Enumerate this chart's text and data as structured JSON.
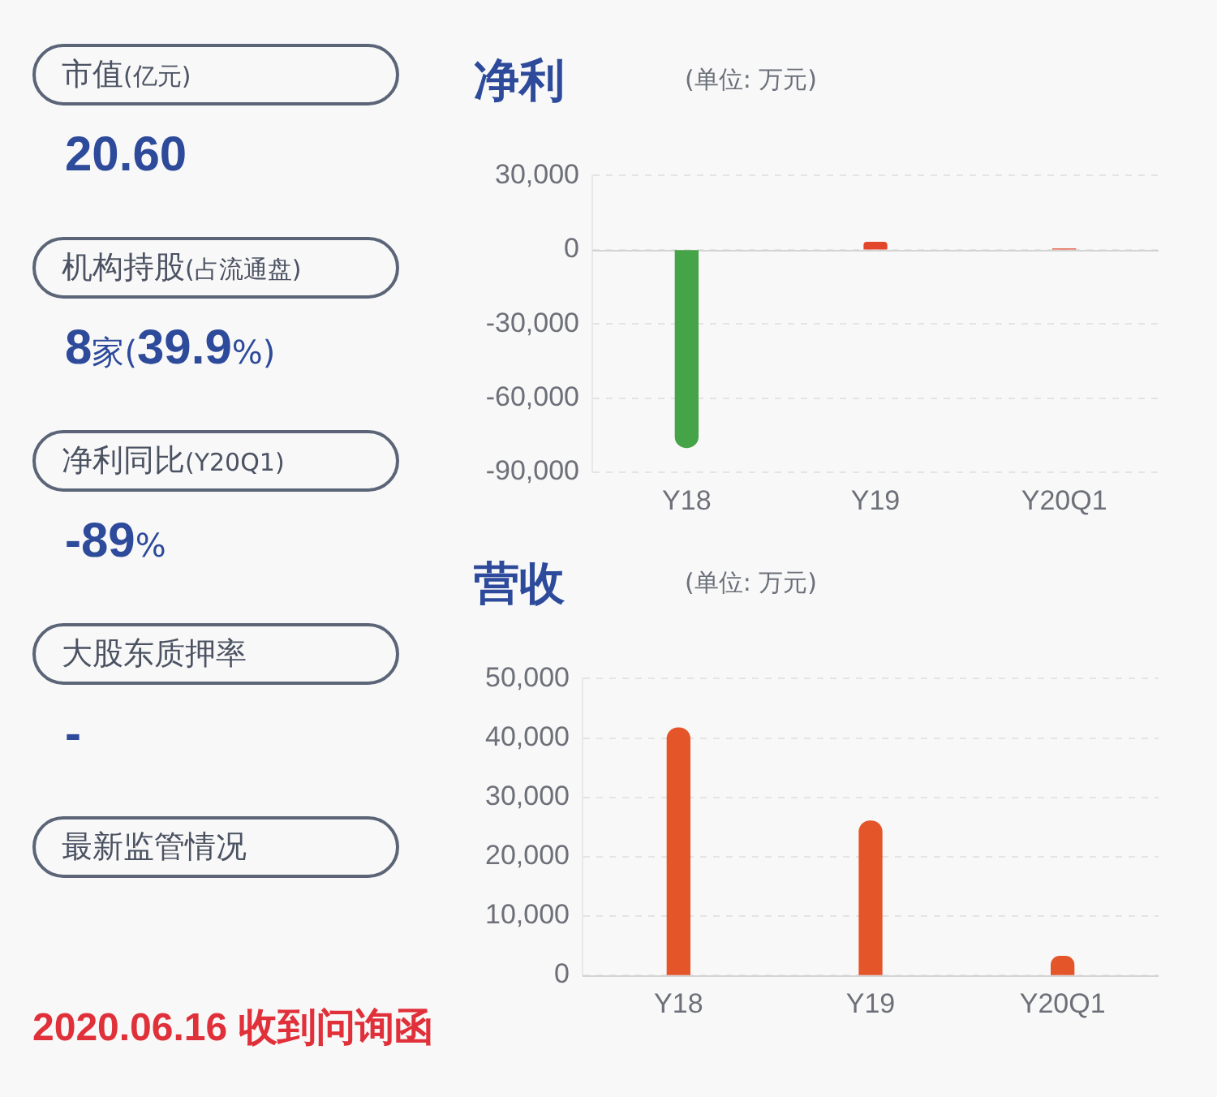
{
  "chart_data": [
    {
      "type": "other",
      "categories": [
        "市值(亿元)",
        "机构持股(占流通盘)",
        "净利同比(Y20Q1)",
        "大股东质押率",
        "最新监管情况"
      ],
      "value_labels": [
        "20.60",
        "8家(39.9%)",
        "-89%",
        "-",
        null
      ],
      "annotations": [
        "2020.06.16 收到问询函"
      ]
    },
    {
      "type": "bar",
      "title": "净利",
      "subtitle": "(单位: 万元)",
      "categories": [
        "Y18",
        "Y19",
        "Y20Q1"
      ],
      "values": [
        -80000,
        3000,
        300
      ],
      "colors": [
        "#44a447",
        "#e2472b",
        "#e2472b"
      ],
      "ylim": [
        -90000,
        30000
      ],
      "yticks": [
        {
          "value": -90000,
          "label": "-90,000"
        },
        {
          "value": -60000,
          "label": "-60,000"
        },
        {
          "value": -30000,
          "label": "-30,000"
        },
        0,
        {
          "value": 30000,
          "label": "30,000"
        }
      ],
      "grid": "y"
    },
    {
      "type": "bar",
      "title": "营收",
      "subtitle": "(单位: 万元)",
      "categories": [
        "Y18",
        "Y19",
        "Y20Q1"
      ],
      "values": [
        41700,
        26000,
        3200
      ],
      "color": "#e4552a",
      "ylim": [
        0,
        50000
      ],
      "yticks": [
        0,
        {
          "value": 10000,
          "label": "10,000"
        },
        {
          "value": 20000,
          "label": "20,000"
        },
        {
          "value": 30000,
          "label": "30,000"
        },
        {
          "value": 40000,
          "label": "40,000"
        },
        {
          "value": 50000,
          "label": "50,000"
        }
      ],
      "grid": "y"
    }
  ]
}
